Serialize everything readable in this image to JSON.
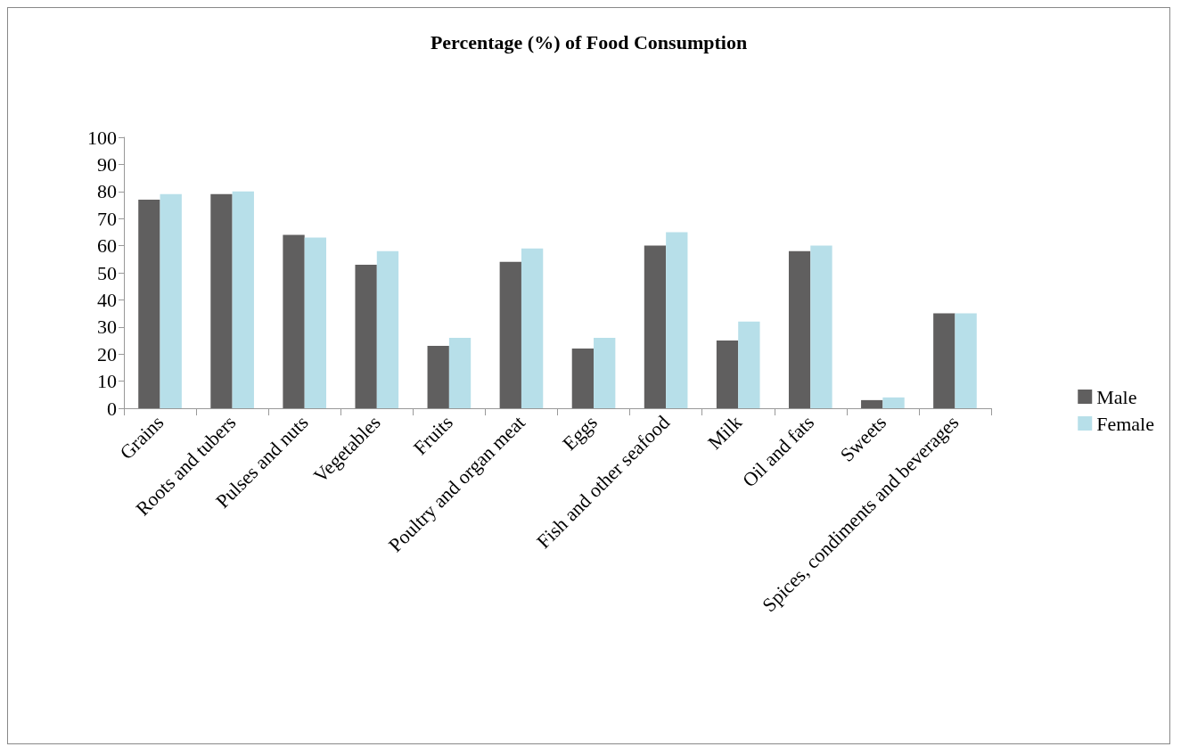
{
  "chart_data": {
    "type": "bar",
    "title": "Percentage (%) of Food Consumption",
    "categories": [
      "Grains",
      "Roots and tubers",
      "Pulses and nuts",
      "Vegetables",
      "Fruits",
      "Poultry and organ meat",
      "Eggs",
      "Fish and other seafood",
      "Milk",
      "Oil and fats",
      "Sweets",
      "Spices, condiments and beverages"
    ],
    "series": [
      {
        "name": "Male",
        "color": "#605f5f",
        "values": [
          77,
          79,
          64,
          53,
          23,
          54,
          22,
          60,
          25,
          58,
          3,
          35
        ]
      },
      {
        "name": "Female",
        "color": "#b7dfe9",
        "values": [
          79,
          80,
          63,
          58,
          26,
          59,
          26,
          65,
          32,
          60,
          4,
          35
        ]
      }
    ],
    "ylim": [
      0,
      100
    ],
    "yticks": [
      0,
      10,
      20,
      30,
      40,
      50,
      60,
      70,
      80,
      90,
      100
    ],
    "grid": false,
    "legend": "right"
  }
}
